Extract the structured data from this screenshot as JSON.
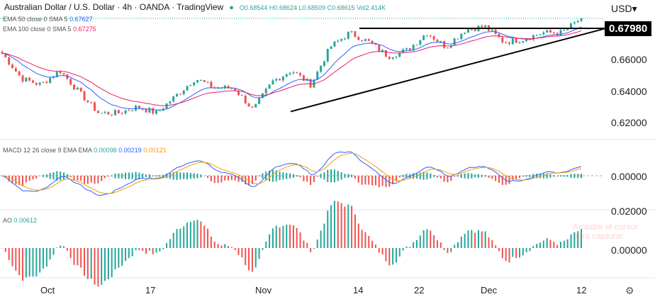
{
  "header": {
    "title": "Australian Dollar / U.S. Dollar · 4h · OANDA · TradingView",
    "open": "O0.68544",
    "high": "H0.68624",
    "low": "L0.68509",
    "close": "C0.68615",
    "volume": "Vol2.414K",
    "currency": "USD"
  },
  "indicators": {
    "ema50": {
      "label": "EMA 50 close 0 SMA 5",
      "value": "0.67627",
      "color": "#2962ff"
    },
    "ema100": {
      "label": "EMA 100 close 0 SMA 5",
      "value": "0.67275",
      "color": "#e91e63"
    },
    "macd": {
      "label": "MACD 12 26 close 9 EMA EMA",
      "hist": "0.00098",
      "macd": "0.00219",
      "signal": "0.00121"
    },
    "ao": {
      "label": "AO",
      "value": "0.00612"
    }
  },
  "price_axis": {
    "labels": [
      "0.66000",
      "0.64000",
      "0.62000"
    ],
    "current": "0.67980"
  },
  "macd_axis": {
    "labels": [
      "0.00000"
    ]
  },
  "ao_axis": {
    "labels": [
      "0.02000",
      "0.00000"
    ]
  },
  "time_axis": [
    "Oct",
    "17",
    "Nov",
    "14",
    "22",
    "Dec",
    "12"
  ],
  "watermark": "Arrastre el cursor para capturar.",
  "colors": {
    "up": "#26a69a",
    "down": "#ef5350",
    "macd": "#2962ff",
    "signal": "#ff9800"
  },
  "chart_data": {
    "type": "candlestick",
    "ylim": [
      0.61,
      0.695
    ],
    "close_path": [
      0.664,
      0.648,
      0.644,
      0.653,
      0.639,
      0.626,
      0.626,
      0.63,
      0.626,
      0.637,
      0.648,
      0.642,
      0.642,
      0.628,
      0.646,
      0.653,
      0.644,
      0.668,
      0.677,
      0.671,
      0.662,
      0.666,
      0.677,
      0.668,
      0.679,
      0.681,
      0.671,
      0.673,
      0.677,
      0.677,
      0.68615
    ],
    "resistance_level": 0.6798,
    "support_line": {
      "from": 0.627,
      "to": 0.6798
    }
  }
}
